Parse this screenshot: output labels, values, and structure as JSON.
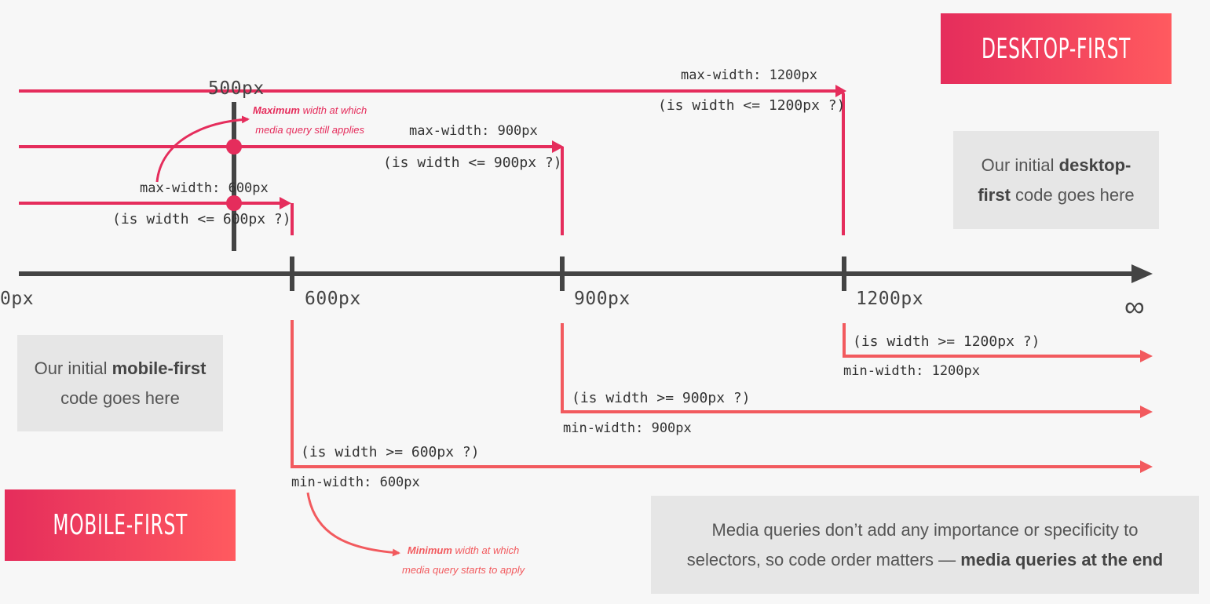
{
  "axis": {
    "start_label": "0px",
    "breakpoints": [
      "600px",
      "900px",
      "1200px"
    ],
    "end_label": "∞"
  },
  "marker": {
    "label": "500px"
  },
  "desktop_first": {
    "badge": "DESKTOP-FIRST",
    "box": {
      "text_before": "Our initial ",
      "bold": "desktop-first",
      "text_after": " code goes here"
    },
    "queries": [
      {
        "query": "max-width: 1200px",
        "condition": "(is width <= 1200px ?)"
      },
      {
        "query": "max-width: 900px",
        "condition": "(is width <= 900px ?)"
      },
      {
        "query": "max-width: 600px",
        "condition": "(is width <= 600px ?)"
      }
    ],
    "note": {
      "bold": "Maximum",
      "line1_rest": " width at which",
      "line2": "media query still applies"
    }
  },
  "mobile_first": {
    "badge": "MOBILE-FIRST",
    "box": {
      "text_before": "Our initial ",
      "bold": "mobile-first",
      "text_after": " code goes here"
    },
    "queries": [
      {
        "query": "min-width: 1200px",
        "condition": "(is width >= 1200px ?)"
      },
      {
        "query": "min-width: 900px",
        "condition": "(is width >= 900px ?)"
      },
      {
        "query": "min-width: 600px",
        "condition": "(is width >= 600px ?)"
      }
    ],
    "note": {
      "bold": "Minimum",
      "line1_rest": " width at which",
      "line2": "media query starts to apply"
    }
  },
  "footer_note": {
    "line1": "Media queries don’t add any importance or specificity to",
    "line2_text": "selectors, so code order matters — ",
    "line2_bold": "media queries at the end"
  },
  "colors": {
    "max_accent": "#e52d5c",
    "min_accent": "#f25a5e",
    "axis": "#444444",
    "box_bg": "#e6e6e6"
  }
}
